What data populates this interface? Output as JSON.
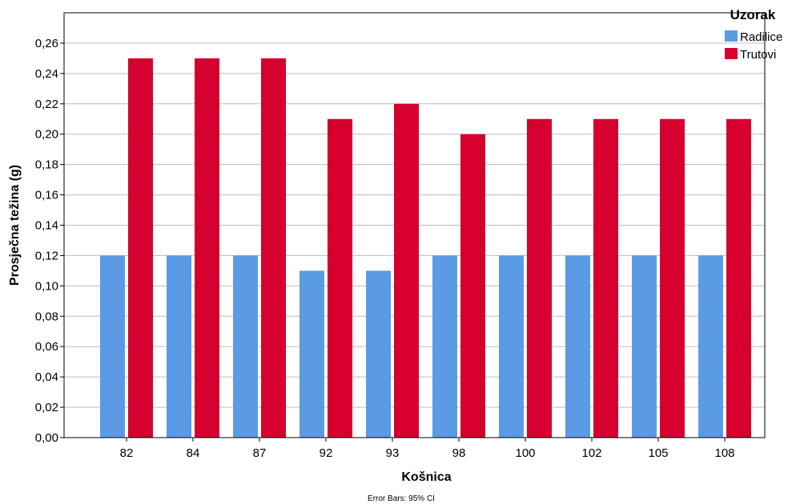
{
  "chart_data": {
    "type": "bar",
    "xlabel": "Košnica",
    "ylabel": "Prosječna težina (g)",
    "categories": [
      "82",
      "84",
      "87",
      "92",
      "93",
      "98",
      "100",
      "102",
      "105",
      "108"
    ],
    "series": [
      {
        "name": "Radilice",
        "color": "#5b9be6",
        "values": [
          0.12,
          0.12,
          0.12,
          0.11,
          0.11,
          0.12,
          0.12,
          0.12,
          0.12,
          0.12
        ]
      },
      {
        "name": "Trutovi",
        "color": "#d5002e",
        "values": [
          0.25,
          0.25,
          0.25,
          0.21,
          0.22,
          0.2,
          0.21,
          0.21,
          0.21,
          0.21
        ]
      }
    ],
    "ylim": [
      0,
      0.28
    ],
    "yticks": [
      0.0,
      0.02,
      0.04,
      0.06,
      0.08,
      0.1,
      0.12,
      0.14,
      0.16,
      0.18,
      0.2,
      0.22,
      0.24,
      0.26
    ],
    "ytick_labels": [
      "0,00",
      "0,02",
      "0,04",
      "0,06",
      "0,08",
      "0,10",
      "0,12",
      "0,14",
      "0,16",
      "0,18",
      "0,20",
      "0,22",
      "0,24",
      "0,26"
    ],
    "grid": true,
    "legend": {
      "title": "Uzorak",
      "position": "top-right"
    },
    "footnote": "Error Bars: 95% CI"
  }
}
